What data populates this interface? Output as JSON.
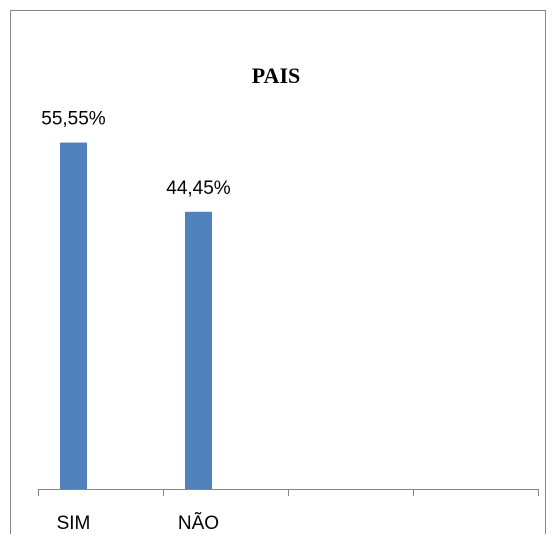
{
  "chart_data": {
    "type": "bar",
    "title": "PAIS",
    "categories": [
      "SIM",
      "NÃO",
      "",
      ""
    ],
    "values": [
      55.55,
      44.45,
      null,
      null
    ],
    "data_labels": [
      "55,55%",
      "44,45%",
      "",
      ""
    ],
    "ylim": [
      0,
      72
    ],
    "grid": false,
    "legend": "none",
    "bar_color": "#4f81bd",
    "border_color": "#868686",
    "axis_color": "#868686"
  }
}
